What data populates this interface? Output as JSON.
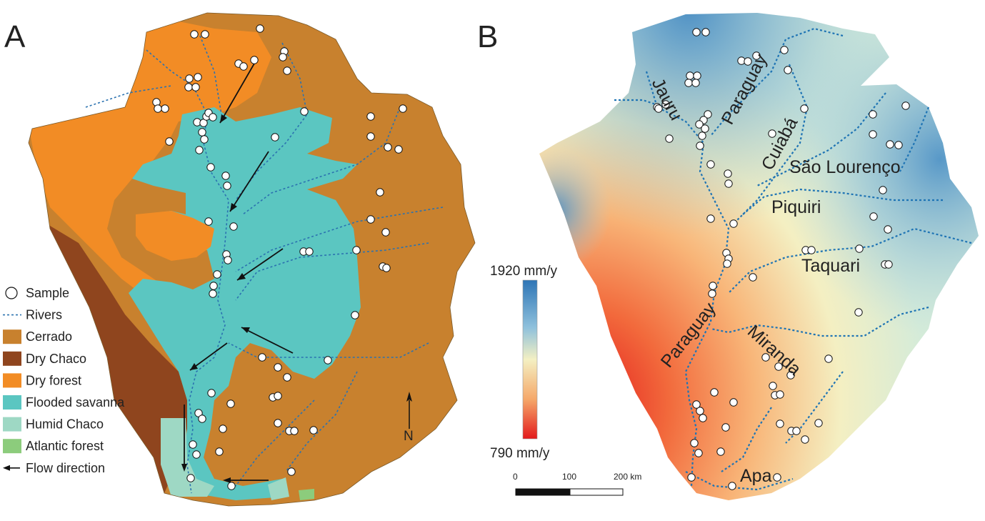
{
  "panels": {
    "a": {
      "letter": "A"
    },
    "b": {
      "letter": "B"
    }
  },
  "legend": [
    {
      "key": "sample",
      "label": "Sample",
      "symbol": "circle",
      "color": "#ffffff"
    },
    {
      "key": "rivers",
      "label": "Rivers",
      "symbol": "dashed-line",
      "color": "#2b72b0"
    },
    {
      "key": "cerrado",
      "label": "Cerrado",
      "symbol": "swatch",
      "color": "#c8812e"
    },
    {
      "key": "dry_chaco",
      "label": "Dry Chaco",
      "symbol": "swatch",
      "color": "#8f451e"
    },
    {
      "key": "dry_forest",
      "label": "Dry forest",
      "symbol": "swatch",
      "color": "#f28c25"
    },
    {
      "key": "flooded_savanna",
      "label": "Flooded savanna",
      "symbol": "swatch",
      "color": "#5bc6c1"
    },
    {
      "key": "humid_chaco",
      "label": "Humid Chaco",
      "symbol": "swatch",
      "color": "#9ed8c4"
    },
    {
      "key": "atlantic_forest",
      "label": "Atlantic forest",
      "symbol": "swatch",
      "color": "#8ccc7c"
    },
    {
      "key": "flow",
      "label": "Flow direction",
      "symbol": "arrow",
      "color": "#111111"
    }
  ],
  "north_arrow": {
    "label": "N"
  },
  "colorbar": {
    "max_label": "1920 mm/y",
    "min_label": "790 mm/y",
    "max_value": 1920,
    "min_value": 790,
    "unit": "mm/y",
    "colors": [
      "#2e75b6",
      "#8fc1dc",
      "#f4f0c3",
      "#f5a86a",
      "#e31a1c"
    ]
  },
  "scalebar": {
    "ticks": [
      "0",
      "100",
      "200 km"
    ]
  },
  "rivers": {
    "jauru": "Jauru",
    "paraguay_north": "Paraguay",
    "cuiaba": "Cuiabá",
    "sao_lourenco": "São Lourenço",
    "piquiri": "Piquiri",
    "taquari": "Taquari",
    "paraguay_south": "Paraguay",
    "miranda": "Miranda",
    "apa": "Apa"
  }
}
